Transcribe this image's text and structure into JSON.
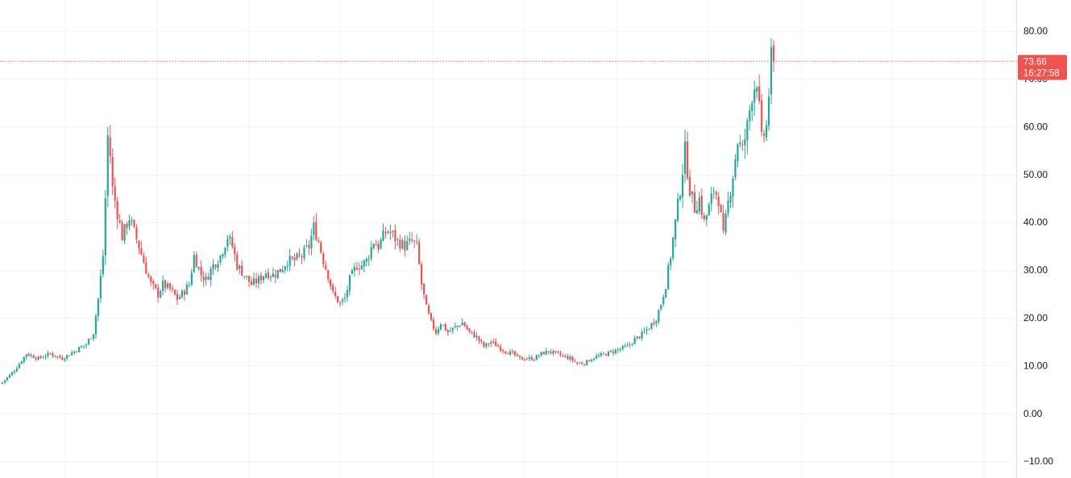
{
  "colors": {
    "up": "#26a69a",
    "down": "#ef5350",
    "grid": "#f0f3fa",
    "axis_border": "#e0e3eb",
    "price_line": "#ef5350",
    "badge_bg": "#ef5350",
    "axis_text": "#131722"
  },
  "price_badge": {
    "price": "73.66",
    "countdown": "16:27:58"
  },
  "chart_data": {
    "type": "candlestick",
    "y_axis": {
      "position": "right",
      "ticks": [
        "80.00",
        "70.00",
        "60.00",
        "50.00",
        "40.00",
        "30.00",
        "20.00",
        "10.00",
        "0.00",
        "−10.00"
      ],
      "range": [
        -13.5,
        86.5
      ]
    },
    "x_axis": {
      "labels_visible": false,
      "vertical_gridlines": 11
    },
    "grid": true,
    "last_price_line": 73.66,
    "candle_count": 240,
    "close_anchors": [
      [
        0,
        6.5
      ],
      [
        5,
        9
      ],
      [
        10,
        12.5
      ],
      [
        15,
        11.5
      ],
      [
        20,
        12.5
      ],
      [
        25,
        11.5
      ],
      [
        30,
        13
      ],
      [
        35,
        14.5
      ],
      [
        38,
        17
      ],
      [
        40,
        24
      ],
      [
        42,
        33
      ],
      [
        43,
        45
      ],
      [
        44,
        58
      ],
      [
        45,
        54
      ],
      [
        46,
        47
      ],
      [
        48,
        42
      ],
      [
        50,
        37
      ],
      [
        53,
        41
      ],
      [
        55,
        38
      ],
      [
        57,
        35
      ],
      [
        60,
        30
      ],
      [
        62,
        27
      ],
      [
        65,
        25
      ],
      [
        67,
        27
      ],
      [
        70,
        26
      ],
      [
        73,
        24
      ],
      [
        75,
        25
      ],
      [
        78,
        27
      ],
      [
        80,
        33
      ],
      [
        83,
        29
      ],
      [
        85,
        28
      ],
      [
        88,
        31
      ],
      [
        91,
        33
      ],
      [
        94,
        37
      ],
      [
        96,
        35
      ],
      [
        98,
        31
      ],
      [
        101,
        29
      ],
      [
        104,
        27
      ],
      [
        107,
        28
      ],
      [
        110,
        29.5
      ],
      [
        113,
        29
      ],
      [
        116,
        30
      ],
      [
        119,
        32
      ],
      [
        122,
        32
      ],
      [
        125,
        33
      ],
      [
        128,
        35
      ],
      [
        130,
        39
      ],
      [
        132,
        36
      ],
      [
        134,
        32
      ],
      [
        136,
        29
      ],
      [
        138,
        25
      ],
      [
        141,
        23
      ],
      [
        143,
        24
      ],
      [
        145,
        28
      ],
      [
        148,
        31
      ],
      [
        150,
        31
      ],
      [
        152,
        32
      ],
      [
        155,
        36
      ],
      [
        157,
        35
      ],
      [
        160,
        38
      ],
      [
        162,
        38
      ],
      [
        165,
        36
      ],
      [
        168,
        35
      ],
      [
        171,
        36
      ],
      [
        173,
        35
      ],
      [
        175,
        27
      ],
      [
        177,
        22
      ],
      [
        179,
        19
      ],
      [
        181,
        17
      ],
      [
        183,
        19
      ],
      [
        186,
        17
      ],
      [
        189,
        18
      ],
      [
        192,
        19
      ],
      [
        195,
        17
      ],
      [
        198,
        16
      ],
      [
        201,
        14
      ],
      [
        204,
        15
      ],
      [
        207,
        14
      ],
      [
        210,
        13
      ],
      [
        213,
        12.5
      ],
      [
        216,
        11.5
      ],
      [
        219,
        11.5
      ],
      [
        222,
        11.5
      ],
      [
        225,
        12.5
      ],
      [
        228,
        13
      ],
      [
        231,
        12.5
      ],
      [
        234,
        12
      ],
      [
        237,
        11.5
      ],
      [
        240,
        10.5
      ],
      [
        243,
        10.5
      ],
      [
        246,
        11.5
      ],
      [
        249,
        12
      ],
      [
        252,
        12.5
      ],
      [
        255,
        13
      ],
      [
        258,
        13.5
      ],
      [
        261,
        14
      ],
      [
        264,
        15.5
      ],
      [
        267,
        16.5
      ],
      [
        270,
        18
      ],
      [
        273,
        20
      ],
      [
        275,
        23
      ],
      [
        277,
        27
      ],
      [
        279,
        33
      ],
      [
        281,
        40
      ],
      [
        283,
        47
      ],
      [
        285,
        55
      ],
      [
        287,
        47
      ],
      [
        289,
        43
      ],
      [
        291,
        45
      ],
      [
        293,
        40
      ],
      [
        295,
        43
      ],
      [
        297,
        47
      ],
      [
        299,
        45
      ],
      [
        301,
        37
      ],
      [
        303,
        44
      ],
      [
        305,
        50
      ],
      [
        307,
        57
      ],
      [
        309,
        55
      ],
      [
        311,
        60
      ],
      [
        313,
        67
      ],
      [
        315,
        70
      ],
      [
        317,
        57
      ],
      [
        319,
        60
      ],
      [
        321,
        74
      ],
      [
        322,
        73.66
      ]
    ]
  }
}
